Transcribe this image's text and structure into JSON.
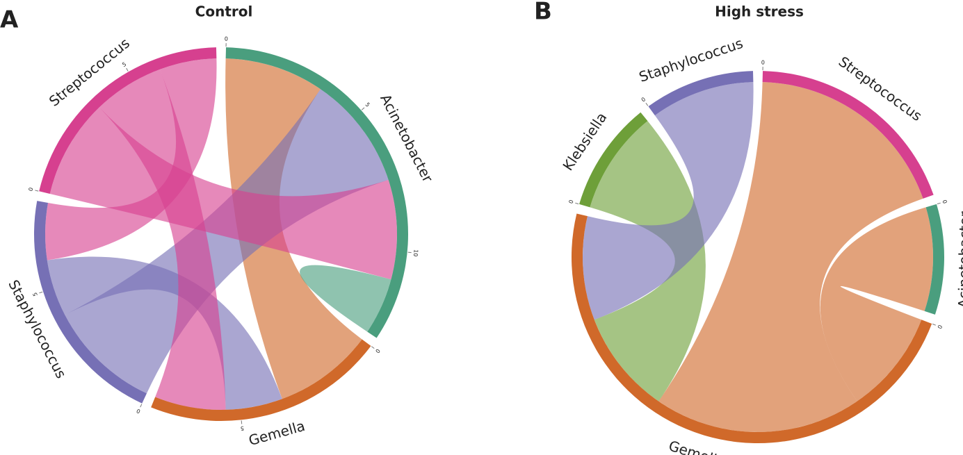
{
  "chart_data": [
    {
      "type": "chord",
      "panel": "A",
      "title": "Control",
      "sectors": [
        {
          "name": "Acinetobacter",
          "color": "#4a9e7e",
          "ticks": [
            0,
            5,
            10
          ]
        },
        {
          "name": "Gemella",
          "color": "#d0692a",
          "ticks": [
            0,
            5
          ]
        },
        {
          "name": "Staphylococcus",
          "color": "#7670b5",
          "ticks": [
            0,
            5
          ]
        },
        {
          "name": "Streptococcus",
          "color": "#d6408f",
          "ticks": [
            0,
            5
          ]
        }
      ],
      "links": [
        {
          "source": "Gemella",
          "target": "Acinetobacter",
          "value": 3.5
        },
        {
          "source": "Staphylococcus",
          "target": "Acinetobacter",
          "value": 4
        },
        {
          "source": "Streptococcus",
          "target": "Acinetobacter",
          "value": 3.5
        },
        {
          "source": "Acinetobacter",
          "target": "Acinetobacter",
          "value": 1
        },
        {
          "source": "Staphylococcus",
          "target": "Gemella",
          "value": 2
        },
        {
          "source": "Streptococcus",
          "target": "Gemella",
          "value": 2.5
        },
        {
          "source": "Streptococcus",
          "target": "Staphylococcus",
          "value": 2
        }
      ]
    },
    {
      "type": "chord",
      "panel": "B",
      "title": "High stress",
      "sectors": [
        {
          "name": "Streptococcus",
          "color": "#d6408f",
          "ticks": [
            0
          ]
        },
        {
          "name": "Acinetobacter",
          "color": "#4a9e7e",
          "ticks": [
            0
          ]
        },
        {
          "name": "Gemella",
          "color": "#d0692a",
          "ticks": [
            0
          ]
        },
        {
          "name": "Klebsiella",
          "color": "#6e9f39",
          "ticks": [
            0
          ]
        },
        {
          "name": "Staphylococcus",
          "color": "#7670b5",
          "ticks": [
            0
          ]
        }
      ],
      "links": [
        {
          "source": "Gemella",
          "target": "Acinetobacter",
          "value": 2
        },
        {
          "source": "Gemella",
          "target": "Streptococcus",
          "value": 4
        },
        {
          "source": "Klebsiella",
          "target": "Gemella",
          "value": 2
        },
        {
          "source": "Staphylococcus",
          "target": "Gemella",
          "value": 2
        }
      ]
    }
  ]
}
